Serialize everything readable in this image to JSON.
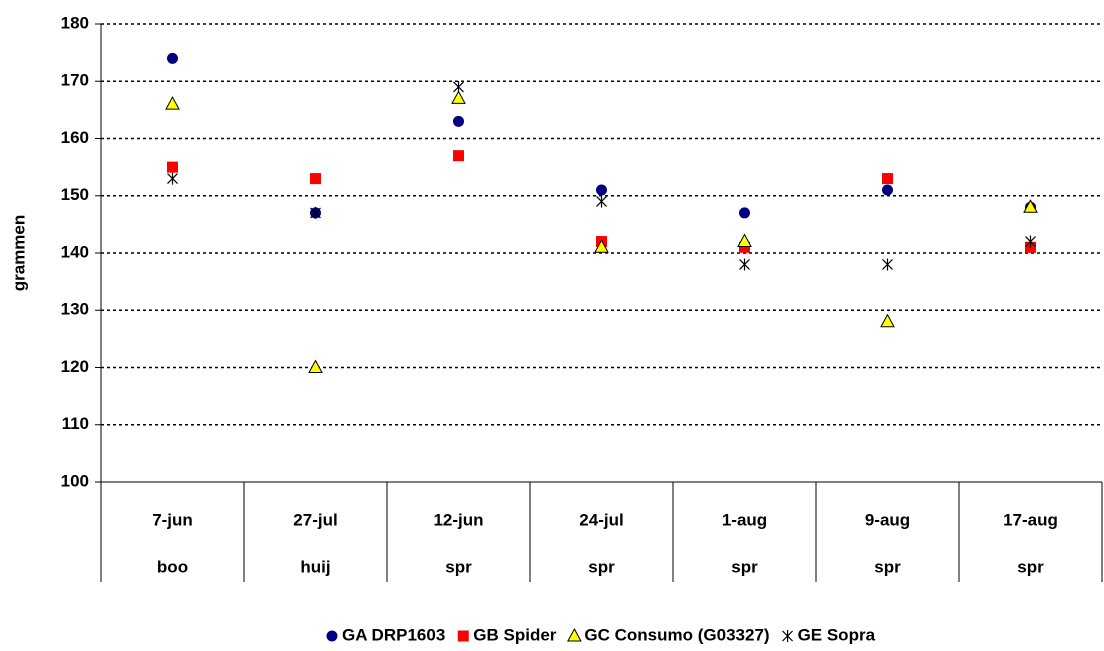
{
  "chart_data": {
    "type": "scatter",
    "y_label": "grammen",
    "categories": [
      [
        "7-jun",
        "boo"
      ],
      [
        "27-jul",
        "huij"
      ],
      [
        "12-jun",
        "spr"
      ],
      [
        "24-jul",
        "spr"
      ],
      [
        "1-aug",
        "spr"
      ],
      [
        "9-aug",
        "spr"
      ],
      [
        "17-aug",
        "spr"
      ]
    ],
    "series": [
      {
        "name": "GA DRP1603",
        "color": "#000080",
        "marker": "circle",
        "values": [
          174,
          147,
          163,
          151,
          147,
          151,
          148
        ]
      },
      {
        "name": "GB Spider",
        "color": "#ff0000",
        "marker": "square",
        "values": [
          155,
          153,
          157,
          142,
          141,
          153,
          141
        ]
      },
      {
        "name": "GC Consumo (G03327)",
        "color": "#ffff00",
        "marker": "triangle",
        "values": [
          166,
          120,
          167,
          141,
          142,
          128,
          148
        ]
      },
      {
        "name": "GE Sopra",
        "color": "#000000",
        "marker": "star",
        "values": [
          153,
          147,
          169,
          149,
          138,
          138,
          142
        ]
      }
    ],
    "ylim": [
      100,
      180
    ],
    "yticks": [
      100,
      110,
      120,
      130,
      140,
      150,
      160,
      170,
      180
    ],
    "grid": true,
    "legend": "bottom"
  }
}
